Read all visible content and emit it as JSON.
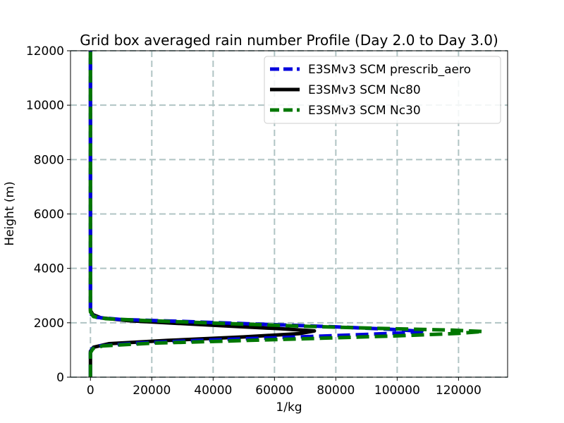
{
  "chart_data": {
    "type": "line",
    "title": "Grid box averaged rain number Profile (Day 2.0 to Day 3.0)",
    "xlabel": "1/kg",
    "ylabel": "Height (m)",
    "xlim": [
      -6500,
      136000
    ],
    "ylim": [
      0,
      12000
    ],
    "xticks": [
      0,
      20000,
      40000,
      60000,
      80000,
      100000,
      120000
    ],
    "yticks": [
      0,
      2000,
      4000,
      6000,
      8000,
      10000,
      12000
    ],
    "grid": true,
    "legend_position": "top-right",
    "series": [
      {
        "name": "E3SMv3 SCM prescrib_aero",
        "color": "#0000dd",
        "style": "dashed",
        "points": [
          [
            0,
            0
          ],
          [
            0,
            900
          ],
          [
            500,
            1050
          ],
          [
            3000,
            1150
          ],
          [
            15000,
            1250
          ],
          [
            35000,
            1350
          ],
          [
            60000,
            1450
          ],
          [
            85000,
            1550
          ],
          [
            100000,
            1620
          ],
          [
            108000,
            1680
          ],
          [
            100000,
            1750
          ],
          [
            80000,
            1850
          ],
          [
            55000,
            1950
          ],
          [
            30000,
            2050
          ],
          [
            10000,
            2120
          ],
          [
            2000,
            2200
          ],
          [
            300,
            2300
          ],
          [
            0,
            2500
          ],
          [
            0,
            12000
          ]
        ]
      },
      {
        "name": "E3SMv3 SCM Nc80",
        "color": "#000000",
        "style": "solid",
        "points": [
          [
            0,
            0
          ],
          [
            0,
            950
          ],
          [
            1000,
            1100
          ],
          [
            6000,
            1230
          ],
          [
            25000,
            1350
          ],
          [
            50000,
            1480
          ],
          [
            68000,
            1600
          ],
          [
            73000,
            1700
          ],
          [
            62000,
            1780
          ],
          [
            45000,
            1880
          ],
          [
            28000,
            1980
          ],
          [
            12000,
            2080
          ],
          [
            3500,
            2180
          ],
          [
            800,
            2300
          ],
          [
            0,
            2450
          ],
          [
            0,
            12000
          ]
        ]
      },
      {
        "name": "E3SMv3 SCM Nc30",
        "color": "#007700",
        "style": "dashed",
        "points": [
          [
            0,
            0
          ],
          [
            0,
            900
          ],
          [
            800,
            1050
          ],
          [
            4000,
            1150
          ],
          [
            20000,
            1250
          ],
          [
            45000,
            1330
          ],
          [
            75000,
            1430
          ],
          [
            100000,
            1520
          ],
          [
            120000,
            1610
          ],
          [
            128000,
            1680
          ],
          [
            118000,
            1730
          ],
          [
            95000,
            1790
          ],
          [
            68000,
            1880
          ],
          [
            40000,
            1990
          ],
          [
            18000,
            2080
          ],
          [
            5000,
            2150
          ],
          [
            1000,
            2230
          ],
          [
            0,
            2400
          ],
          [
            0,
            12000
          ]
        ]
      }
    ]
  }
}
